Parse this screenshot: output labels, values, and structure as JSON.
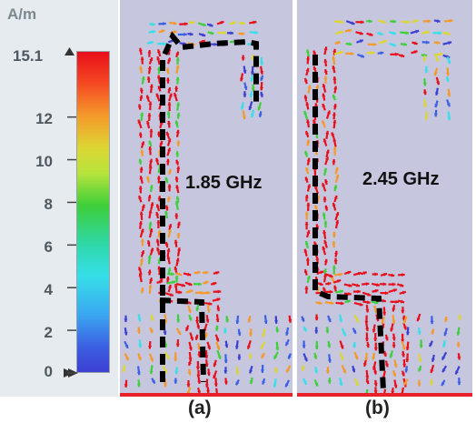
{
  "legend": {
    "unit": "A/m",
    "max_label": "15.1",
    "ticks": [
      "12",
      "10",
      "8",
      "6",
      "4",
      "2",
      "0"
    ],
    "max_value": 15.1,
    "tick_values": [
      12,
      10,
      8,
      6,
      4,
      2,
      0
    ],
    "colors": [
      "#e80f1a",
      "#f59a2a",
      "#dcd634",
      "#3ecf3a",
      "#36dfe9",
      "#3b60e3",
      "#3d3fd2"
    ]
  },
  "panels": [
    {
      "caption": "(a)",
      "frequency": "1.85 GHz"
    },
    {
      "caption": "(b)",
      "frequency": "2.45 GHz"
    }
  ],
  "colors": {
    "background": "#c6c6de",
    "current_path": "#000000",
    "ground_plane": "#e8202a"
  }
}
